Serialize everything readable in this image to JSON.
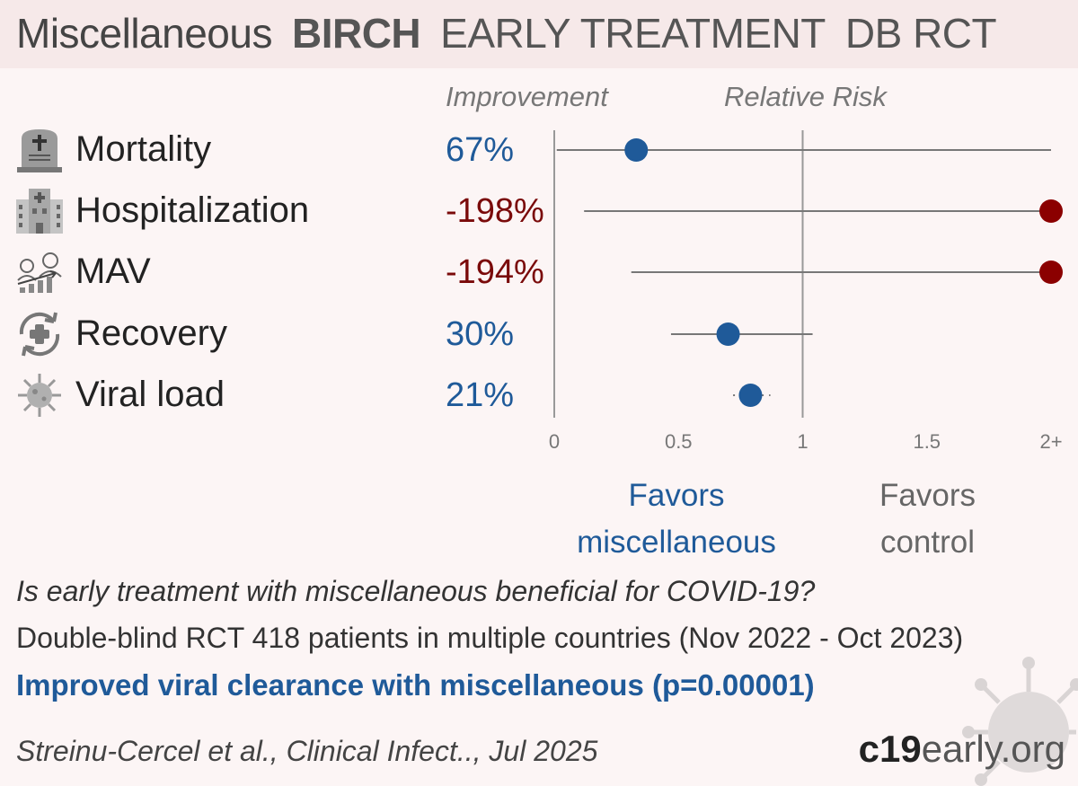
{
  "header": {
    "treatment": "Miscellaneous",
    "study": "BIRCH",
    "stage": "EARLY TREATMENT",
    "design": "DB RCT"
  },
  "columns": {
    "improvement": "Improvement",
    "relative_risk": "Relative Risk"
  },
  "outcomes": [
    {
      "label": "Mortality",
      "improvement": "67%",
      "icon": "tombstone-icon",
      "direction": "positive"
    },
    {
      "label": "Hospitalization",
      "improvement": "-198%",
      "icon": "hospital-icon",
      "direction": "negative"
    },
    {
      "label": "MAV",
      "improvement": "-194%",
      "icon": "ventilation-icon",
      "direction": "negative"
    },
    {
      "label": "Recovery",
      "improvement": "30%",
      "icon": "recovery-icon",
      "direction": "positive"
    },
    {
      "label": "Viral load",
      "improvement": "21%",
      "icon": "virus-icon",
      "direction": "positive"
    }
  ],
  "chart_data": {
    "type": "scatter",
    "subtype": "forest-plot",
    "xlabel": "Relative Risk",
    "xlim": [
      0,
      2
    ],
    "xticks": [
      "0",
      "0.5",
      "1",
      "1.5",
      "2+"
    ],
    "reference_line": 1,
    "grid": false,
    "series": [
      {
        "category": "Mortality",
        "rr": 0.33,
        "ci": [
          0.01,
          2.0
        ],
        "ci_upper_truncated": true,
        "color": "#1f5a99"
      },
      {
        "category": "Hospitalization",
        "rr": 2.0,
        "ci": [
          0.12,
          2.0
        ],
        "ci_upper_truncated": true,
        "rr_truncated": true,
        "color": "#8b0000"
      },
      {
        "category": "MAV",
        "rr": 2.0,
        "ci": [
          0.31,
          2.0
        ],
        "ci_upper_truncated": true,
        "rr_truncated": true,
        "color": "#8b0000"
      },
      {
        "category": "Recovery",
        "rr": 0.7,
        "ci": [
          0.47,
          1.04
        ],
        "color": "#1f5a99"
      },
      {
        "category": "Viral load",
        "rr": 0.79,
        "ci": [
          0.72,
          0.87
        ],
        "color": "#1f5a99"
      }
    ]
  },
  "favors": {
    "treatment": "Favors\nmiscellaneous",
    "control": "Favors\ncontrol"
  },
  "summary": {
    "question": "Is early treatment with miscellaneous beneficial for COVID-19?",
    "design": "Double-blind RCT 418 patients in multiple countries (Nov 2022 - Oct 2023)",
    "result": "Improved viral clearance with miscellaneous (p=0.00001)",
    "citation": "Streinu-Cercel et al., Clinical Infect.., Jul 2025"
  },
  "brand": {
    "bold": "c19",
    "rest": "early.org"
  },
  "colors": {
    "positive": "#1f5a99",
    "negative": "#7a0a0a",
    "background": "#fcf5f5",
    "header_bg": "#f6e9e9"
  }
}
